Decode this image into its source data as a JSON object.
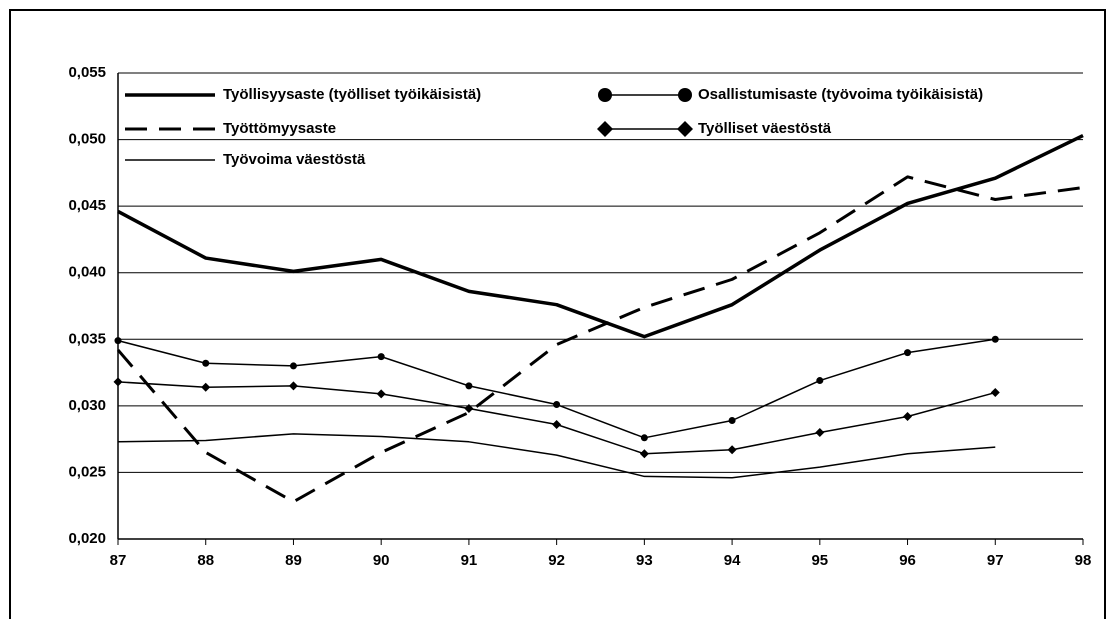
{
  "chart_data": {
    "type": "line",
    "categories": [
      "87",
      "88",
      "89",
      "90",
      "91",
      "92",
      "93",
      "94",
      "95",
      "96",
      "97",
      "98"
    ],
    "series": [
      {
        "name": "Työllisyysaste (työlliset työikäisistä)",
        "color": "#000000",
        "style": "thick",
        "values": [
          0.0446,
          0.0411,
          0.0401,
          0.041,
          0.0386,
          0.0376,
          0.0352,
          0.0376,
          0.0417,
          0.0452,
          0.0471,
          0.0503
        ]
      },
      {
        "name": "Osallistumisaste (työvoima työikäisistä)",
        "color": "#000000",
        "style": "circle",
        "values": [
          0.0349,
          0.0332,
          0.033,
          0.0337,
          0.0315,
          0.0301,
          0.0276,
          0.0289,
          0.0319,
          0.034,
          0.035,
          null
        ]
      },
      {
        "name": "Työttömyysaste",
        "color": "#000000",
        "style": "dashed",
        "values": [
          0.0342,
          0.0265,
          0.0228,
          0.0265,
          0.0295,
          0.0346,
          0.0374,
          0.0395,
          0.043,
          0.0472,
          0.0455,
          0.0464
        ]
      },
      {
        "name": "Työlliset väestöstä",
        "color": "#000000",
        "style": "diamond",
        "values": [
          0.0318,
          0.0314,
          0.0315,
          0.0309,
          0.0298,
          0.0286,
          0.0264,
          0.0267,
          0.028,
          0.0292,
          0.031,
          null
        ]
      },
      {
        "name": "Työvoima väestöstä",
        "color": "#000000",
        "style": "thin",
        "values": [
          0.0273,
          0.0274,
          0.0279,
          0.0277,
          0.0273,
          0.0263,
          0.0247,
          0.0246,
          0.0254,
          0.0264,
          0.0269,
          null
        ]
      }
    ],
    "ylim": [
      0.02,
      0.055
    ],
    "yticks": [
      {
        "value": 0.02,
        "label": "0,020"
      },
      {
        "value": 0.025,
        "label": "0,025"
      },
      {
        "value": 0.03,
        "label": "0,030"
      },
      {
        "value": 0.035,
        "label": "0,035"
      },
      {
        "value": 0.04,
        "label": "0,040"
      },
      {
        "value": 0.045,
        "label": "0,045"
      },
      {
        "value": 0.05,
        "label": "0,050"
      },
      {
        "value": 0.055,
        "label": "0,055"
      }
    ],
    "grid": true
  }
}
